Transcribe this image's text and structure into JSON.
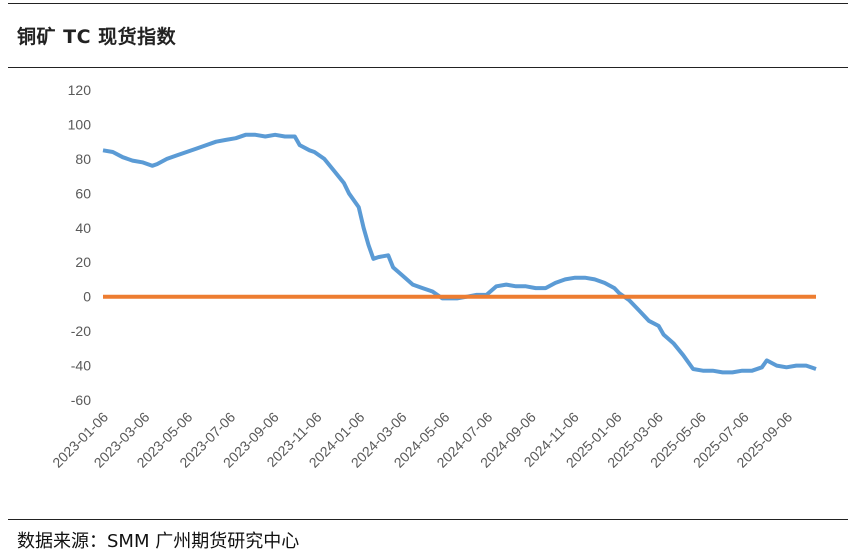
{
  "title": "铜矿 TC 现货指数",
  "source": "数据来源：SMM  广州期货研究中心",
  "colors": {
    "series": "#5B9BD5",
    "zero_line": "#ED7D31",
    "tick_text": "#595959"
  },
  "chart_data": {
    "type": "line",
    "title": "铜矿 TC 现货指数",
    "xlabel": "",
    "ylabel": "",
    "ylim": [
      -60,
      120
    ],
    "yticks": [
      "120",
      "100",
      "80",
      "60",
      "40",
      "20",
      "0",
      "-20",
      "-40",
      "-60"
    ],
    "xticks": [
      "2023-01-06",
      "2023-03-06",
      "2023-05-06",
      "2023-07-06",
      "2023-09-06",
      "2023-11-06",
      "2024-01-06",
      "2024-03-06",
      "2024-05-06",
      "2024-07-06",
      "2024-09-06",
      "2024-11-06",
      "2025-01-06",
      "2025-03-06",
      "2025-05-06",
      "2025-07-06",
      "2025-09-06"
    ],
    "grid": false,
    "legend": "none",
    "series": [
      {
        "x": [
          "2023-01-06",
          "2023-01-20",
          "2023-02-03",
          "2023-02-17",
          "2023-03-03",
          "2023-03-17",
          "2023-03-24",
          "2023-04-07",
          "2023-04-21",
          "2023-05-05",
          "2023-05-19",
          "2023-06-02",
          "2023-06-16",
          "2023-06-30",
          "2023-07-14",
          "2023-07-28",
          "2023-08-11",
          "2023-08-25",
          "2023-09-08",
          "2023-09-22",
          "2023-10-06",
          "2023-10-13",
          "2023-10-27",
          "2023-11-03",
          "2023-11-17",
          "2023-12-01",
          "2023-12-15",
          "2023-12-22",
          "2024-01-05",
          "2024-01-12",
          "2024-01-19",
          "2024-01-26",
          "2024-02-02",
          "2024-02-16",
          "2024-02-23",
          "2024-03-08",
          "2024-03-22",
          "2024-04-05",
          "2024-04-19",
          "2024-05-03",
          "2024-05-10",
          "2024-05-24",
          "2024-06-07",
          "2024-06-21",
          "2024-07-05",
          "2024-07-19",
          "2024-08-02",
          "2024-08-16",
          "2024-08-30",
          "2024-09-13",
          "2024-09-27",
          "2024-10-11",
          "2024-10-25",
          "2024-11-08",
          "2024-11-22",
          "2024-12-06",
          "2024-12-20",
          "2025-01-03",
          "2025-01-10",
          "2025-01-24",
          "2025-02-07",
          "2025-02-21",
          "2025-03-07",
          "2025-03-14",
          "2025-03-28",
          "2025-04-11",
          "2025-04-25",
          "2025-05-09",
          "2025-05-23",
          "2025-06-06",
          "2025-06-20",
          "2025-07-04",
          "2025-07-18",
          "2025-08-01",
          "2025-08-08",
          "2025-08-22",
          "2025-09-05",
          "2025-09-19",
          "2025-10-03",
          "2025-10-17"
        ],
        "values": [
          85,
          84,
          81,
          79,
          78,
          76,
          77,
          80,
          82,
          84,
          86,
          88,
          90,
          91,
          92,
          94,
          94,
          93,
          94,
          93,
          93,
          88,
          85,
          84,
          80,
          73,
          66,
          60,
          52,
          40,
          30,
          22,
          23,
          24,
          17,
          12,
          7,
          5,
          3,
          -1,
          -1,
          -1,
          0,
          1,
          1,
          6,
          7,
          6,
          6,
          5,
          5,
          8,
          10,
          11,
          11,
          10,
          8,
          5,
          2,
          -2,
          -8,
          -14,
          -17,
          -22,
          -27,
          -34,
          -42,
          -43,
          -43,
          -44,
          -44,
          -43,
          -43,
          -41,
          -37,
          -40,
          -41,
          -40,
          -40,
          -42
        ]
      },
      {
        "x": [
          "2023-01-06",
          "2025-10-17"
        ],
        "values": [
          0,
          0
        ]
      }
    ]
  }
}
